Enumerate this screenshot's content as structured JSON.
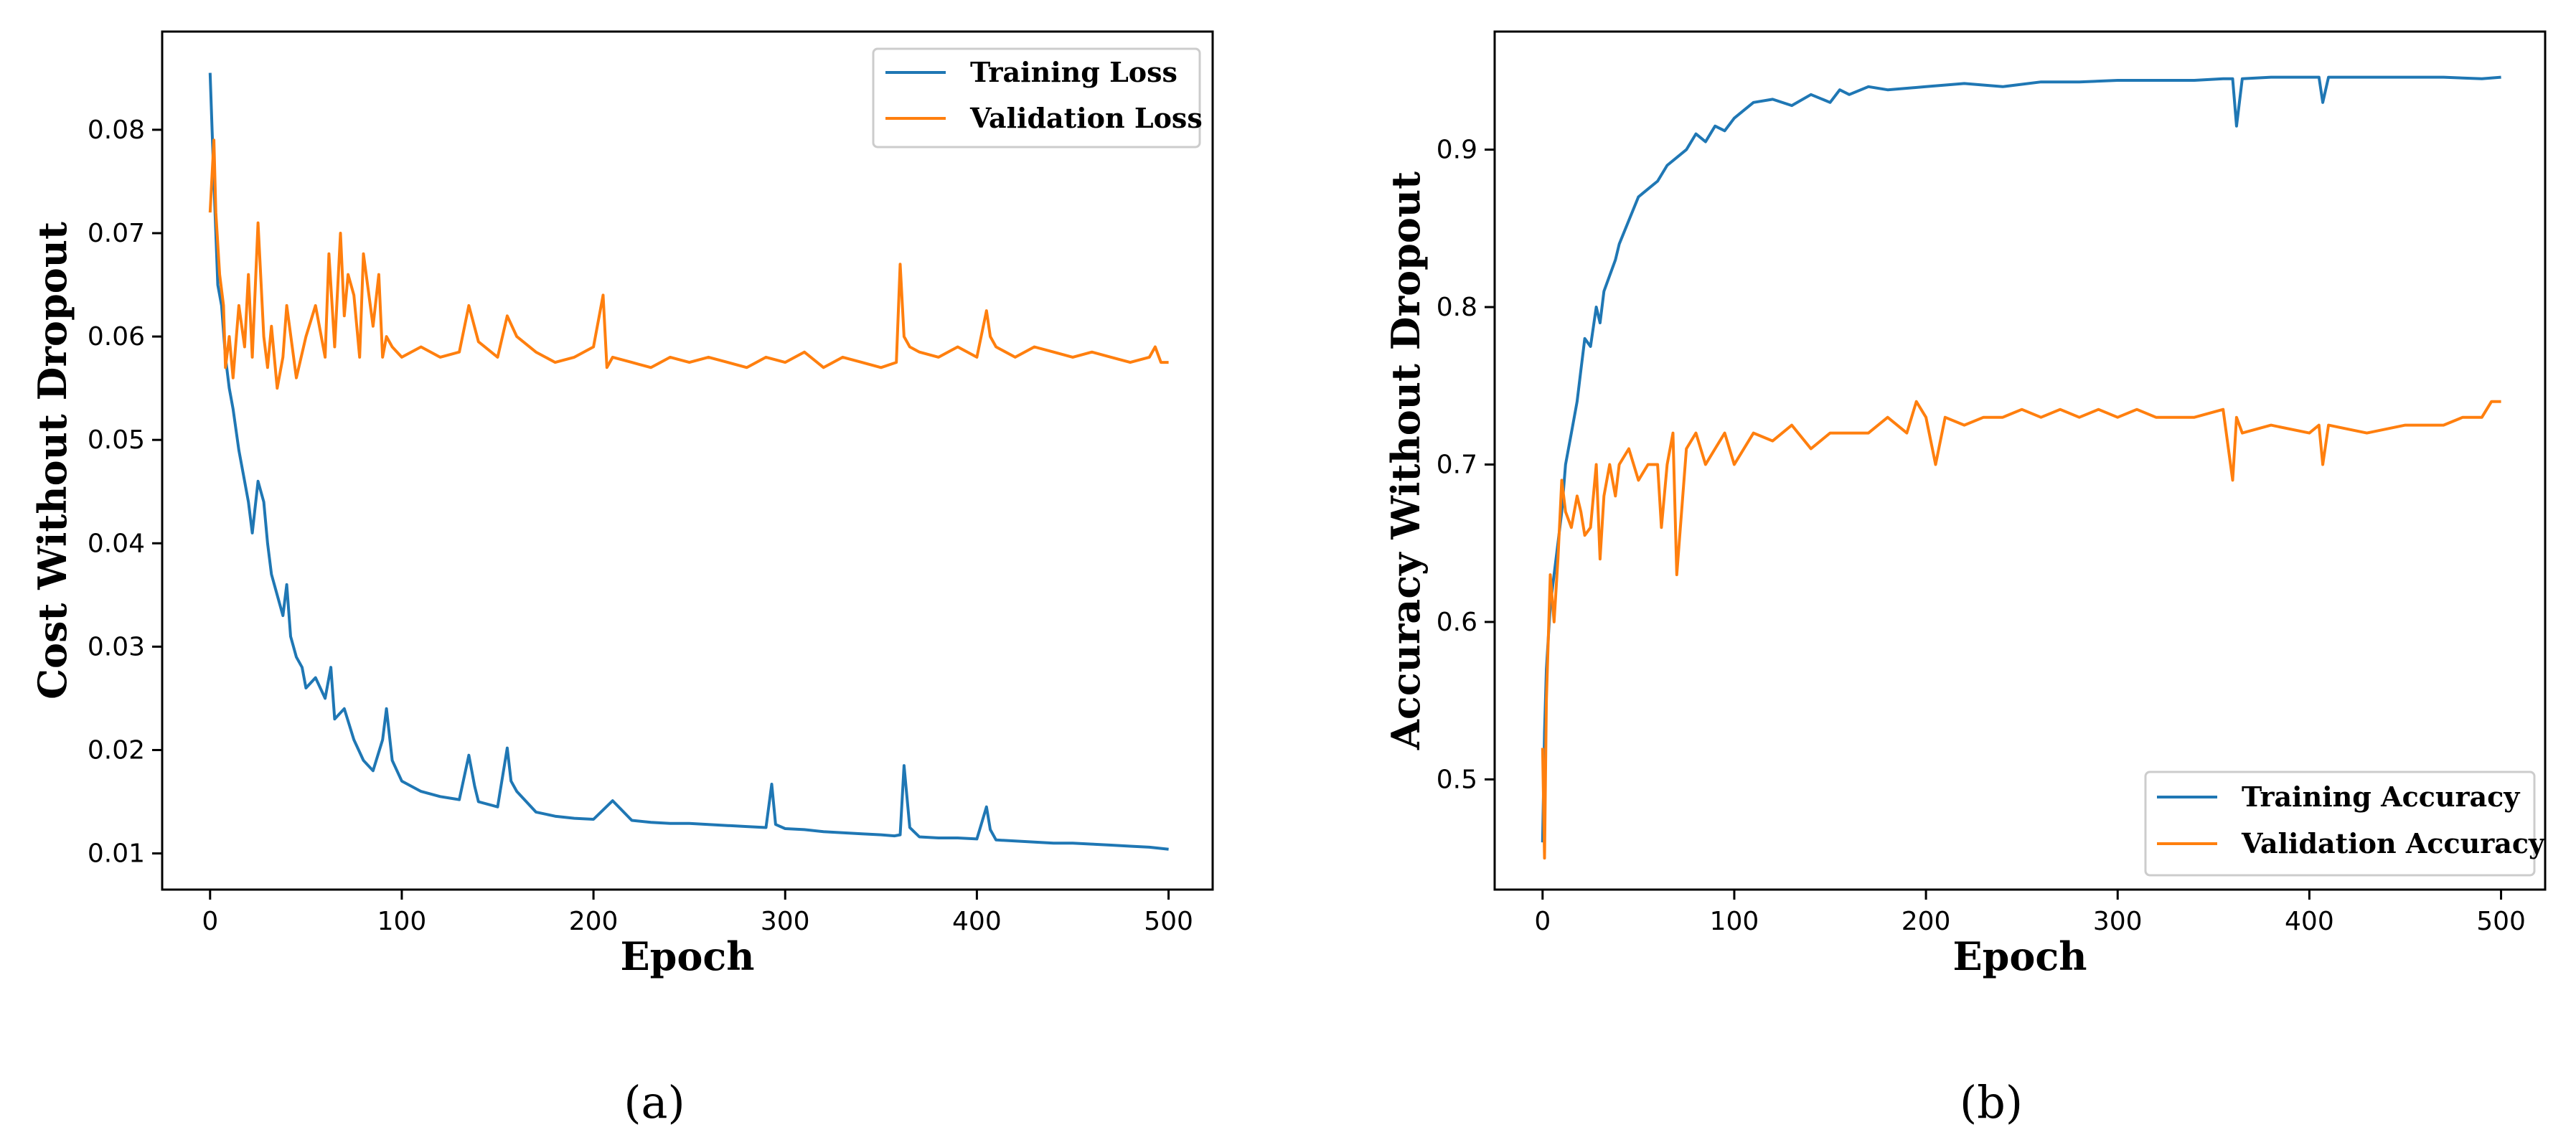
{
  "colors": {
    "training": "#1f77b4",
    "validation": "#ff7f0e"
  },
  "chart_data": [
    {
      "type": "line",
      "panel_label": "a",
      "xlabel": "Epoch",
      "ylabel": "Cost Without Dropout",
      "xlim": [
        -25,
        523
      ],
      "ylim": [
        0.0065,
        0.0895
      ],
      "xticks": [
        0,
        100,
        200,
        300,
        400,
        500
      ],
      "xtick_labels": [
        "0",
        "100",
        "200",
        "300",
        "400",
        "500"
      ],
      "yticks": [
        0.01,
        0.02,
        0.03,
        0.04,
        0.05,
        0.06,
        0.07,
        0.08
      ],
      "ytick_labels": [
        "0.01",
        "0.02",
        "0.03",
        "0.04",
        "0.05",
        "0.06",
        "0.07",
        "0.08"
      ],
      "legend_position": "top-right",
      "series": [
        {
          "name": "Training Loss",
          "color": "#1f77b4",
          "x": [
            0,
            2,
            4,
            6,
            8,
            10,
            12,
            15,
            18,
            20,
            22,
            25,
            28,
            30,
            32,
            35,
            38,
            40,
            42,
            45,
            48,
            50,
            55,
            60,
            63,
            65,
            70,
            75,
            80,
            85,
            90,
            92,
            95,
            100,
            110,
            120,
            130,
            135,
            138,
            140,
            150,
            155,
            157,
            160,
            170,
            180,
            190,
            200,
            210,
            220,
            230,
            240,
            250,
            260,
            270,
            280,
            290,
            293,
            295,
            300,
            310,
            320,
            330,
            340,
            350,
            357,
            360,
            362,
            365,
            370,
            380,
            390,
            400,
            405,
            407,
            410,
            420,
            430,
            440,
            450,
            460,
            470,
            480,
            490,
            500
          ],
          "y": [
            0.0855,
            0.075,
            0.065,
            0.063,
            0.058,
            0.055,
            0.053,
            0.049,
            0.046,
            0.044,
            0.041,
            0.046,
            0.044,
            0.04,
            0.037,
            0.035,
            0.033,
            0.036,
            0.031,
            0.029,
            0.028,
            0.026,
            0.027,
            0.025,
            0.028,
            0.023,
            0.024,
            0.021,
            0.019,
            0.018,
            0.021,
            0.024,
            0.019,
            0.017,
            0.016,
            0.0155,
            0.0152,
            0.0195,
            0.0165,
            0.015,
            0.0145,
            0.0202,
            0.017,
            0.016,
            0.014,
            0.0136,
            0.0134,
            0.0133,
            0.0151,
            0.0132,
            0.013,
            0.0129,
            0.0129,
            0.0128,
            0.0127,
            0.0126,
            0.0125,
            0.0167,
            0.0128,
            0.0124,
            0.0123,
            0.0121,
            0.012,
            0.0119,
            0.0118,
            0.0117,
            0.0118,
            0.0185,
            0.0125,
            0.0116,
            0.0115,
            0.0115,
            0.0114,
            0.0145,
            0.0123,
            0.0113,
            0.0112,
            0.0111,
            0.011,
            0.011,
            0.0109,
            0.0108,
            0.0107,
            0.0106,
            0.0104
          ]
        },
        {
          "name": "Validation Loss",
          "color": "#ff7f0e",
          "x": [
            0,
            2,
            3,
            5,
            7,
            8,
            10,
            12,
            15,
            18,
            20,
            22,
            25,
            28,
            30,
            32,
            35,
            38,
            40,
            45,
            50,
            55,
            60,
            62,
            65,
            68,
            70,
            72,
            75,
            78,
            80,
            85,
            88,
            90,
            92,
            95,
            100,
            110,
            120,
            130,
            135,
            140,
            150,
            155,
            160,
            170,
            180,
            190,
            200,
            205,
            207,
            210,
            220,
            230,
            240,
            250,
            260,
            270,
            280,
            290,
            300,
            310,
            320,
            330,
            340,
            350,
            358,
            360,
            362,
            365,
            370,
            380,
            390,
            400,
            405,
            407,
            410,
            420,
            430,
            440,
            450,
            460,
            470,
            480,
            490,
            493,
            496,
            500
          ],
          "y": [
            0.072,
            0.079,
            0.072,
            0.066,
            0.063,
            0.057,
            0.06,
            0.056,
            0.063,
            0.059,
            0.066,
            0.058,
            0.071,
            0.06,
            0.057,
            0.061,
            0.055,
            0.058,
            0.063,
            0.056,
            0.06,
            0.063,
            0.058,
            0.068,
            0.059,
            0.07,
            0.062,
            0.066,
            0.064,
            0.058,
            0.068,
            0.061,
            0.066,
            0.058,
            0.06,
            0.059,
            0.058,
            0.059,
            0.058,
            0.0585,
            0.063,
            0.0595,
            0.058,
            0.062,
            0.06,
            0.0585,
            0.0575,
            0.058,
            0.059,
            0.064,
            0.057,
            0.058,
            0.0575,
            0.057,
            0.058,
            0.0575,
            0.058,
            0.0575,
            0.057,
            0.058,
            0.0575,
            0.0585,
            0.057,
            0.058,
            0.0575,
            0.057,
            0.0575,
            0.067,
            0.06,
            0.059,
            0.0585,
            0.058,
            0.059,
            0.058,
            0.0625,
            0.06,
            0.059,
            0.058,
            0.059,
            0.0585,
            0.058,
            0.0585,
            0.058,
            0.0575,
            0.058,
            0.059,
            0.0575,
            0.0575
          ]
        }
      ]
    },
    {
      "type": "line",
      "panel_label": "b",
      "xlabel": "Epoch",
      "ylabel": "Accuracy Without Dropout",
      "xlim": [
        -25,
        523
      ],
      "ylim": [
        0.43,
        0.975
      ],
      "xticks": [
        0,
        100,
        200,
        300,
        400,
        500
      ],
      "xtick_labels": [
        "0",
        "100",
        "200",
        "300",
        "400",
        "500"
      ],
      "yticks": [
        0.5,
        0.6,
        0.7,
        0.8,
        0.9
      ],
      "ytick_labels": [
        "0.5",
        "0.6",
        "0.7",
        "0.8",
        "0.9"
      ],
      "legend_position": "bottom-right",
      "series": [
        {
          "name": "Training Accuracy",
          "color": "#1f77b4",
          "x": [
            0,
            1,
            2,
            4,
            6,
            8,
            10,
            12,
            15,
            18,
            20,
            22,
            25,
            28,
            30,
            32,
            35,
            38,
            40,
            45,
            50,
            55,
            60,
            65,
            70,
            75,
            80,
            85,
            90,
            95,
            100,
            105,
            110,
            120,
            130,
            140,
            150,
            155,
            160,
            170,
            180,
            200,
            220,
            240,
            260,
            280,
            300,
            320,
            340,
            355,
            360,
            362,
            365,
            380,
            400,
            405,
            407,
            410,
            430,
            450,
            470,
            490,
            500
          ],
          "y": [
            0.46,
            0.53,
            0.57,
            0.61,
            0.63,
            0.65,
            0.67,
            0.7,
            0.72,
            0.74,
            0.76,
            0.78,
            0.775,
            0.8,
            0.79,
            0.81,
            0.82,
            0.83,
            0.84,
            0.855,
            0.87,
            0.875,
            0.88,
            0.89,
            0.895,
            0.9,
            0.91,
            0.905,
            0.915,
            0.912,
            0.92,
            0.925,
            0.93,
            0.932,
            0.928,
            0.935,
            0.93,
            0.938,
            0.935,
            0.94,
            0.938,
            0.94,
            0.942,
            0.94,
            0.943,
            0.943,
            0.944,
            0.944,
            0.944,
            0.945,
            0.945,
            0.915,
            0.945,
            0.946,
            0.946,
            0.946,
            0.93,
            0.946,
            0.946,
            0.946,
            0.946,
            0.945,
            0.946
          ]
        },
        {
          "name": "Validation Accuracy",
          "color": "#ff7f0e",
          "x": [
            0,
            1,
            2,
            4,
            6,
            8,
            10,
            12,
            15,
            18,
            20,
            22,
            25,
            28,
            30,
            32,
            35,
            38,
            40,
            45,
            50,
            55,
            60,
            62,
            65,
            68,
            70,
            75,
            80,
            85,
            90,
            95,
            100,
            110,
            120,
            130,
            140,
            150,
            160,
            170,
            180,
            190,
            195,
            200,
            205,
            210,
            220,
            230,
            240,
            250,
            260,
            270,
            280,
            290,
            300,
            310,
            320,
            340,
            355,
            360,
            362,
            365,
            380,
            400,
            405,
            407,
            410,
            430,
            450,
            470,
            480,
            490,
            495,
            500
          ],
          "y": [
            0.52,
            0.45,
            0.55,
            0.63,
            0.6,
            0.64,
            0.69,
            0.67,
            0.66,
            0.68,
            0.67,
            0.655,
            0.66,
            0.7,
            0.64,
            0.68,
            0.7,
            0.68,
            0.7,
            0.71,
            0.69,
            0.7,
            0.7,
            0.66,
            0.7,
            0.72,
            0.63,
            0.71,
            0.72,
            0.7,
            0.71,
            0.72,
            0.7,
            0.72,
            0.715,
            0.725,
            0.71,
            0.72,
            0.72,
            0.72,
            0.73,
            0.72,
            0.74,
            0.73,
            0.7,
            0.73,
            0.725,
            0.73,
            0.73,
            0.735,
            0.73,
            0.735,
            0.73,
            0.735,
            0.73,
            0.735,
            0.73,
            0.73,
            0.735,
            0.69,
            0.73,
            0.72,
            0.725,
            0.72,
            0.725,
            0.7,
            0.725,
            0.72,
            0.725,
            0.725,
            0.73,
            0.73,
            0.74,
            0.74
          ]
        }
      ]
    }
  ],
  "captions": [
    "(a)",
    "(b)"
  ]
}
